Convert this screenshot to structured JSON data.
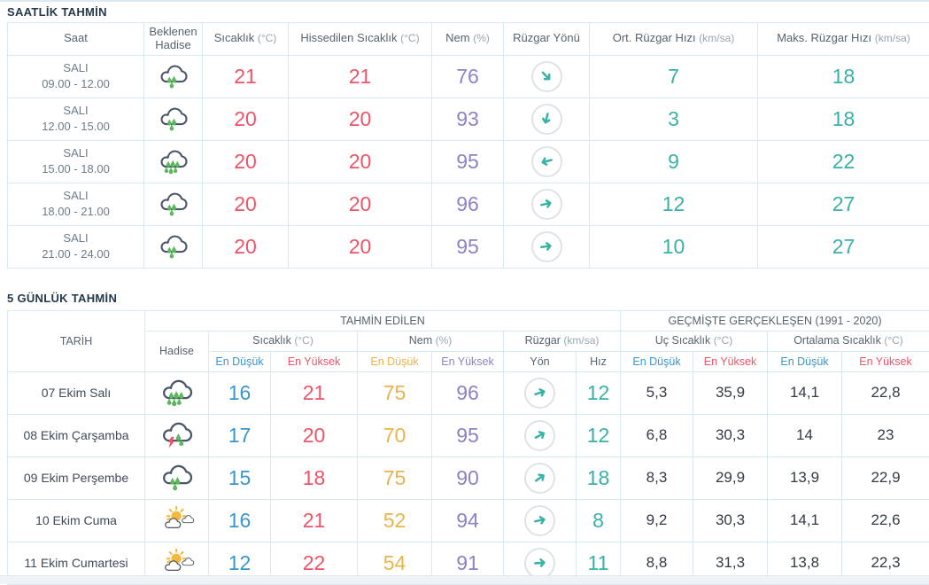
{
  "colors": {
    "title_navy": "#24384a",
    "table_border": "#d9e8f1",
    "header_text": "#56646f",
    "unit_text": "#9aa6b0",
    "temp_max_red": "#ee5468",
    "temp_min_blue": "#3a97c9",
    "humidity_purple": "#8d82c4",
    "humidity_min_orange": "#e9b44c",
    "wind_teal": "#38b2a7",
    "historical_text": "#333b44",
    "rain_drop_green": "#5cb85c",
    "sun_yellow": "#f6b93f",
    "cloud_outline": "#4a5568"
  },
  "hourly": {
    "title": "SAATLİK TAHMİN",
    "columns": {
      "time": "Saat",
      "event": "Beklenen Hadise",
      "temp": "Sıcaklık",
      "temp_unit": "(°C)",
      "feels": "Hissedilen Sıcaklık",
      "feels_unit": "(°C)",
      "humidity": "Nem",
      "humidity_unit": "(%)",
      "wind_dir": "Rüzgar Yönü",
      "avg_wind": "Ort. Rüzgar Hızı",
      "avg_wind_unit": "(km/sa)",
      "max_wind": "Maks. Rüzgar Hızı",
      "max_wind_unit": "(km/sa)"
    },
    "rows": [
      {
        "day": "SALI",
        "time": "09.00 - 12.00",
        "icon": "rain",
        "temp": "21",
        "feels": "21",
        "humidity": "76",
        "wind_deg": 45,
        "avg_wind": "7",
        "max_wind": "18"
      },
      {
        "day": "SALI",
        "time": "12.00 - 15.00",
        "icon": "rain",
        "temp": "20",
        "feels": "20",
        "humidity": "93",
        "wind_deg": 105,
        "avg_wind": "3",
        "max_wind": "18"
      },
      {
        "day": "SALI",
        "time": "15.00 - 18.00",
        "icon": "heavy-rain",
        "temp": "20",
        "feels": "20",
        "humidity": "95",
        "wind_deg": 165,
        "avg_wind": "9",
        "max_wind": "22"
      },
      {
        "day": "SALI",
        "time": "18.00 - 21.00",
        "icon": "rain",
        "temp": "20",
        "feels": "20",
        "humidity": "96",
        "wind_deg": -12,
        "avg_wind": "12",
        "max_wind": "27"
      },
      {
        "day": "SALI",
        "time": "21.00 - 24.00",
        "icon": "rain",
        "temp": "20",
        "feels": "20",
        "humidity": "95",
        "wind_deg": -8,
        "avg_wind": "10",
        "max_wind": "27"
      }
    ]
  },
  "daily": {
    "title": "5 GÜNLÜK TAHMİN",
    "groups": {
      "predicted": "TAHMİN EDİLEN",
      "historical": "GEÇMİŞTE GERÇEKLEŞEN (1991 - 2020)"
    },
    "columns": {
      "date": "TARİH",
      "event": "Hadise",
      "temp": "Sıcaklık",
      "temp_unit": "(°C)",
      "humidity": "Nem",
      "humidity_unit": "(%)",
      "wind": "Rüzgar",
      "wind_unit": "(km/sa)",
      "extreme_temp": "Uç Sıcaklık",
      "extreme_temp_unit": "(°C)",
      "avg_temp": "Ortalama Sıcaklık",
      "avg_temp_unit": "(°C)",
      "min": "En Düşük",
      "max": "En Yüksek",
      "dir": "Yön",
      "speed": "Hız"
    },
    "rows": [
      {
        "date": "07 Ekim Salı",
        "icon": "heavy-rain",
        "temp_min": "16",
        "temp_max": "21",
        "hum_min": "75",
        "hum_max": "96",
        "wind_deg": -18,
        "wind_speed": "12",
        "ext_min": "5,3",
        "ext_max": "35,9",
        "avg_min": "14,1",
        "avg_max": "22,8"
      },
      {
        "date": "08 Ekim Çarşamba",
        "icon": "thunderstorm",
        "temp_min": "17",
        "temp_max": "20",
        "hum_min": "70",
        "hum_max": "95",
        "wind_deg": -28,
        "wind_speed": "12",
        "ext_min": "6,8",
        "ext_max": "30,3",
        "avg_min": "14",
        "avg_max": "23"
      },
      {
        "date": "09 Ekim Perşembe",
        "icon": "rain",
        "temp_min": "15",
        "temp_max": "18",
        "hum_min": "75",
        "hum_max": "90",
        "wind_deg": -35,
        "wind_speed": "18",
        "ext_min": "8,3",
        "ext_max": "29,9",
        "avg_min": "13,9",
        "avg_max": "22,9"
      },
      {
        "date": "10 Ekim Cuma",
        "icon": "partly-cloudy",
        "temp_min": "16",
        "temp_max": "21",
        "hum_min": "52",
        "hum_max": "94",
        "wind_deg": -12,
        "wind_speed": "8",
        "ext_min": "9,2",
        "ext_max": "30,3",
        "avg_min": "14,1",
        "avg_max": "22,6"
      },
      {
        "date": "11 Ekim Cumartesi",
        "icon": "partly-cloudy",
        "temp_min": "12",
        "temp_max": "22",
        "hum_min": "54",
        "hum_max": "91",
        "wind_deg": -5,
        "wind_speed": "11",
        "ext_min": "8,8",
        "ext_max": "31,3",
        "avg_min": "13,8",
        "avg_max": "22,3"
      }
    ]
  }
}
